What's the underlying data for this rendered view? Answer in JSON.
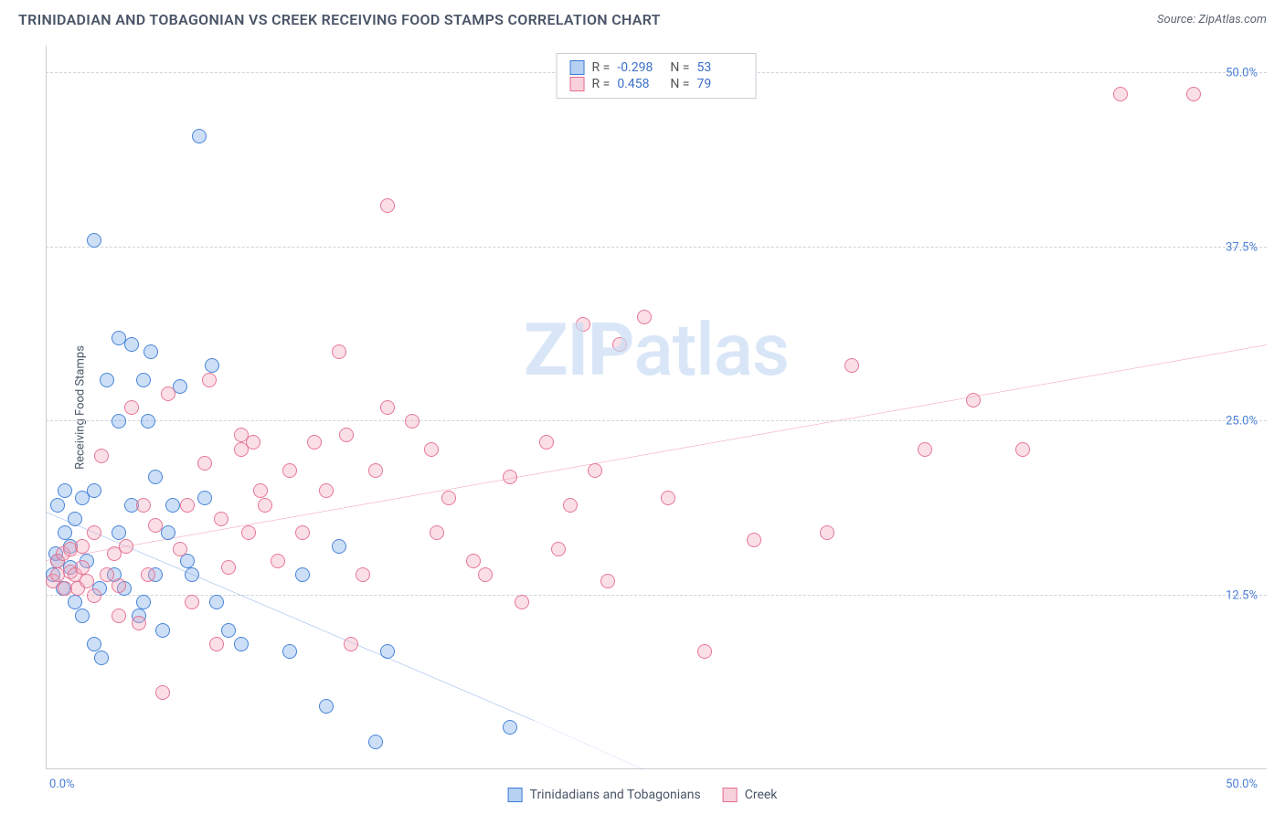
{
  "header": {
    "title": "TRINIDADIAN AND TOBAGONIAN VS CREEK RECEIVING FOOD STAMPS CORRELATION CHART",
    "source": "Source: ZipAtlas.com"
  },
  "watermark": {
    "zip": "ZIP",
    "atlas": "atlas"
  },
  "chart": {
    "type": "scatter",
    "y_axis_label": "Receiving Food Stamps",
    "xlim": [
      0,
      50
    ],
    "ylim": [
      0,
      52
    ],
    "x_ticks": [
      {
        "v": 0,
        "label": "0.0%",
        "pos": "left"
      },
      {
        "v": 50,
        "label": "50.0%",
        "pos": "right"
      }
    ],
    "y_ticks": [
      {
        "v": 12.5,
        "label": "12.5%"
      },
      {
        "v": 25.0,
        "label": "25.0%"
      },
      {
        "v": 37.5,
        "label": "37.5%"
      },
      {
        "v": 50.0,
        "label": "50.0%"
      }
    ],
    "grid_color": "#d0d4da",
    "axis_color": "#c8ccd2",
    "tick_color": "#4a7fd8",
    "label_fontsize": 13,
    "title_fontsize": 16,
    "background_color": "#ffffff",
    "point_radius": 8,
    "point_opacity_fill": 0.35,
    "point_opacity_stroke": 0.9,
    "line_width": 2,
    "series": [
      {
        "name": "Trinidadians and Tobagonians",
        "color": "#6fa3e8",
        "stroke": "#3b7bd6",
        "line_color": "#2a6fd6",
        "r_value": "-0.298",
        "n_value": "53",
        "trend": {
          "x1": 0,
          "y1": 18.5,
          "x2": 20,
          "y2": 3.5,
          "dash_x2": 27,
          "dash_y2": -2
        },
        "points": [
          [
            0.3,
            14
          ],
          [
            0.4,
            15.5
          ],
          [
            0.5,
            19
          ],
          [
            0.5,
            15
          ],
          [
            0.7,
            13
          ],
          [
            0.8,
            17
          ],
          [
            0.8,
            20
          ],
          [
            1,
            14.5
          ],
          [
            1,
            16
          ],
          [
            1.2,
            18
          ],
          [
            1.2,
            12
          ],
          [
            1.5,
            11
          ],
          [
            1.5,
            19.5
          ],
          [
            1.7,
            15
          ],
          [
            2,
            20
          ],
          [
            2,
            9
          ],
          [
            2,
            38
          ],
          [
            2.2,
            13
          ],
          [
            2.3,
            8
          ],
          [
            2.5,
            28
          ],
          [
            2.8,
            14
          ],
          [
            3,
            17
          ],
          [
            3,
            25
          ],
          [
            3,
            31
          ],
          [
            3.2,
            13
          ],
          [
            3.5,
            30.5
          ],
          [
            3.5,
            19
          ],
          [
            3.8,
            11
          ],
          [
            4,
            12
          ],
          [
            4,
            28
          ],
          [
            4.2,
            25
          ],
          [
            4.3,
            30
          ],
          [
            4.5,
            14
          ],
          [
            4.5,
            21
          ],
          [
            4.8,
            10
          ],
          [
            5,
            17
          ],
          [
            5.2,
            19
          ],
          [
            5.5,
            27.5
          ],
          [
            5.8,
            15
          ],
          [
            6,
            14
          ],
          [
            6.3,
            45.5
          ],
          [
            6.5,
            19.5
          ],
          [
            6.8,
            29
          ],
          [
            7,
            12
          ],
          [
            7.5,
            10
          ],
          [
            8,
            9
          ],
          [
            10,
            8.5
          ],
          [
            10.5,
            14
          ],
          [
            11.5,
            4.5
          ],
          [
            12,
            16
          ],
          [
            13.5,
            2
          ],
          [
            14,
            8.5
          ],
          [
            19,
            3
          ]
        ]
      },
      {
        "name": "Creek",
        "color": "#f2a6b8",
        "stroke": "#e66b8f",
        "line_color": "#e8517e",
        "r_value": "0.458",
        "n_value": "79",
        "trend": {
          "x1": 0,
          "y1": 15,
          "x2": 50,
          "y2": 30.5
        },
        "points": [
          [
            0.3,
            13.5
          ],
          [
            0.5,
            14
          ],
          [
            0.5,
            15
          ],
          [
            0.7,
            15.5
          ],
          [
            0.8,
            13
          ],
          [
            1,
            14.2
          ],
          [
            1,
            15.8
          ],
          [
            1.2,
            14
          ],
          [
            1.3,
            13
          ],
          [
            1.5,
            14.5
          ],
          [
            1.5,
            16
          ],
          [
            1.7,
            13.5
          ],
          [
            2,
            12.5
          ],
          [
            2,
            17
          ],
          [
            2.3,
            22.5
          ],
          [
            2.5,
            14
          ],
          [
            2.8,
            15.5
          ],
          [
            3,
            11
          ],
          [
            3,
            13.2
          ],
          [
            3.3,
            16
          ],
          [
            3.5,
            26
          ],
          [
            3.8,
            10.5
          ],
          [
            4,
            19
          ],
          [
            4.2,
            14
          ],
          [
            4.5,
            17.5
          ],
          [
            4.8,
            5.5
          ],
          [
            5,
            27
          ],
          [
            5.5,
            15.8
          ],
          [
            5.8,
            19
          ],
          [
            6,
            12
          ],
          [
            6.5,
            22
          ],
          [
            6.7,
            28
          ],
          [
            7,
            9
          ],
          [
            7.2,
            18
          ],
          [
            7.5,
            14.5
          ],
          [
            8,
            23
          ],
          [
            8,
            24
          ],
          [
            8.3,
            17
          ],
          [
            8.5,
            23.5
          ],
          [
            8.8,
            20
          ],
          [
            9,
            19
          ],
          [
            9.5,
            15
          ],
          [
            10,
            21.5
          ],
          [
            10.5,
            17
          ],
          [
            11,
            23.5
          ],
          [
            11.5,
            20
          ],
          [
            12,
            30
          ],
          [
            12.3,
            24
          ],
          [
            12.5,
            9
          ],
          [
            13,
            14
          ],
          [
            13.5,
            21.5
          ],
          [
            14,
            26
          ],
          [
            14,
            40.5
          ],
          [
            15,
            25
          ],
          [
            15.8,
            23
          ],
          [
            16,
            17
          ],
          [
            16.5,
            19.5
          ],
          [
            17.5,
            15
          ],
          [
            18,
            14
          ],
          [
            19,
            21
          ],
          [
            19.5,
            12
          ],
          [
            20.5,
            23.5
          ],
          [
            21,
            15.8
          ],
          [
            21.5,
            19
          ],
          [
            22,
            32
          ],
          [
            22.5,
            21.5
          ],
          [
            23,
            13.5
          ],
          [
            23.5,
            30.5
          ],
          [
            24.5,
            32.5
          ],
          [
            25.5,
            19.5
          ],
          [
            27,
            8.5
          ],
          [
            29,
            16.5
          ],
          [
            32,
            17
          ],
          [
            33,
            29
          ],
          [
            36,
            23
          ],
          [
            38,
            26.5
          ],
          [
            40,
            23
          ],
          [
            44,
            48.5
          ],
          [
            47,
            48.5
          ]
        ]
      }
    ]
  },
  "legend": {
    "r_label": "R =",
    "n_label": "N ="
  }
}
